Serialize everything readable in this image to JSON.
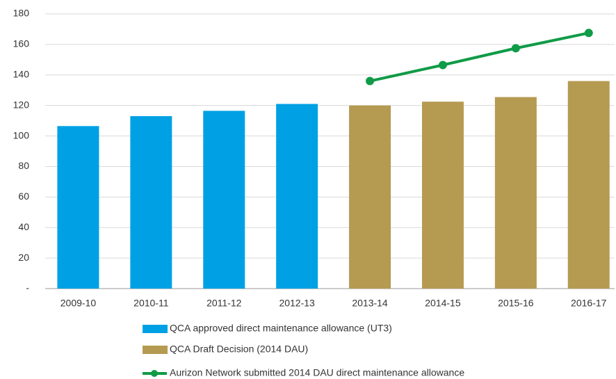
{
  "chart_data": {
    "type": "bar",
    "categories": [
      "2009-10",
      "2010-11",
      "2011-12",
      "2012-13",
      "2013-14",
      "2014-15",
      "2015-16",
      "2016-17"
    ],
    "series": [
      {
        "name": "QCA approved  direct maintenance allowance (UT3)",
        "type": "bar",
        "color": "#00a1e4",
        "values": [
          106.5,
          113,
          116.5,
          121,
          null,
          null,
          null,
          null
        ]
      },
      {
        "name": "QCA Draft Decision (2014 DAU)",
        "type": "bar",
        "color": "#b59a51",
        "values": [
          null,
          null,
          null,
          null,
          120,
          122.5,
          125.5,
          136
        ]
      },
      {
        "name": "Aurizon Network submitted 2014 DAU direct maintenance allowance",
        "type": "line",
        "color": "#0f9b47",
        "values": [
          null,
          null,
          null,
          null,
          136,
          146.5,
          157.5,
          167.5
        ]
      }
    ],
    "ylim": [
      0,
      180
    ],
    "yticks": [
      {
        "value": 0,
        "label": "-"
      },
      20,
      40,
      60,
      80,
      100,
      120,
      140,
      160,
      180
    ],
    "grid": true
  }
}
